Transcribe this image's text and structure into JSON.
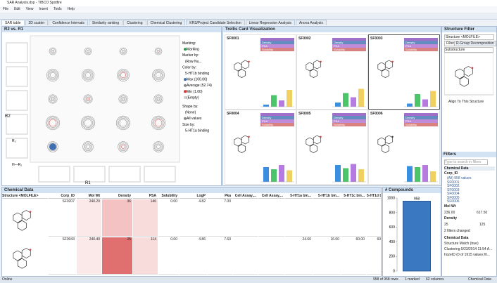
{
  "window": {
    "title": "SAR Analysis.dxp - TIBCO Spotfire",
    "menu": [
      "File",
      "Edit",
      "View",
      "Insert",
      "Tools",
      "Help"
    ]
  },
  "tabs": [
    "SAR table",
    "2D scatter",
    "Confidence Intervals",
    "Similarity ranking",
    "Clustering",
    "Chemical Clustering",
    "KRS/Project Candidate Selection",
    "Linear Regression Analysis",
    "Anova Analysis"
  ],
  "scatter_panel": {
    "title": "R2 vs. R1",
    "x_label": "R1",
    "y_label": "R2",
    "row_labels": [
      "R₂",
      "H—R₂"
    ],
    "legend": [
      "Marking:",
      "Marking",
      "Marker by:",
      "(Row Nu...",
      "Color by:",
      "5-HT1b binding",
      "Max (100.00)",
      "Average (52.74)",
      "Min (1.00)",
      "(Empty)",
      "Shape by:",
      "(None)",
      "All values",
      "Size by:",
      "5-HT1a binding"
    ]
  },
  "trellis": {
    "title": "Trellis Card Visualization",
    "row_labels": [
      "Density",
      "PSA",
      "Solubility"
    ],
    "bar_colors": [
      "#3b8fe0",
      "#4cc46a",
      "#b57be0",
      "#f0d060"
    ],
    "cards": [
      {
        "id": "SF0001",
        "bars": [
          10,
          55,
          30,
          80
        ]
      },
      {
        "id": "SF0002",
        "bars": [
          20,
          65,
          45,
          85
        ]
      },
      {
        "id": "SF0003",
        "bars": [
          15,
          60,
          35,
          75
        ]
      },
      {
        "id": "SF0004",
        "bars": [
          70,
          60,
          80,
          55
        ]
      },
      {
        "id": "SF0005",
        "bars": [
          80,
          65,
          85,
          60
        ]
      },
      {
        "id": "SF0006",
        "bars": [
          75,
          70,
          80,
          50
        ]
      }
    ]
  },
  "filter_panel": {
    "title": "Structure Filter",
    "column": "Structure <MOLFILE>",
    "tabs": [
      "Filter",
      "R-Group Decomposition"
    ],
    "mode": "Substructure",
    "align": "Align To This Structure",
    "filters_title": "Filters",
    "search": "Type to search in filters",
    "table": "Chemical Data",
    "corp_id": "Corp_ID",
    "corp_values": [
      "(All) 958 values",
      "SF0001",
      "SF0002",
      "SF0003",
      "SF0004",
      "SF0005",
      "SF0006"
    ],
    "mol_wt": "Mol Wt",
    "mol_wt_range": [
      "236.00",
      "617.50"
    ],
    "density": "Density",
    "density_range": [
      "25",
      "125"
    ],
    "changed": "2 filters changed",
    "summary": [
      "Chemical Data",
      "Structure Match (true)",
      "Clustering 5/23/2014 11:54 A...",
      "hozeID (0 of 1915 values fil..."
    ]
  },
  "table": {
    "title": "Chemical Data",
    "columns": [
      "Structure <MOLFILE>",
      "Corp_ID",
      "Mol Wt",
      "Density",
      "PSA",
      "Solubility",
      "LogP",
      "Pka",
      "Cell Assay,...",
      "Cell Assay,...",
      "5-HT1a bin...",
      "5-HT1b bin...",
      "5-HT1c bin...",
      "5-HT1d bin..."
    ],
    "rows": [
      [
        null,
        "SF0207",
        "240.20",
        "36",
        "146",
        "0.00",
        "4.82",
        "7.00",
        null,
        null,
        null,
        null,
        null,
        null
      ],
      [
        null,
        "SF0043",
        "240.40",
        "25",
        "114",
        "0.00",
        "4.86",
        "7.60",
        null,
        null,
        "24.60",
        "16.00",
        "60.00",
        "60.00"
      ]
    ]
  },
  "chart_data": {
    "type": "bar",
    "title": "# Compounds",
    "categories": [
      null
    ],
    "values": [
      958
    ],
    "color": "#3a78c2",
    "ylim": [
      0,
      1000
    ],
    "yticks": [
      0,
      200,
      400,
      600,
      800,
      1000
    ]
  },
  "status": [
    "Online",
    "958 of 958 rows",
    "1 marked",
    "62 columns",
    "Chemical Data"
  ]
}
